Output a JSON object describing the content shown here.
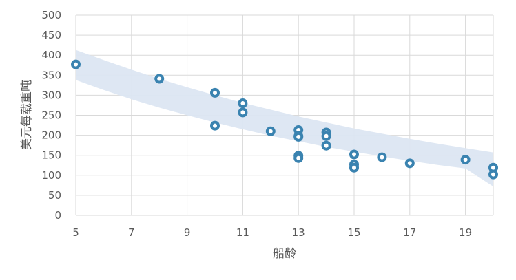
{
  "chart_data": {
    "type": "scatter",
    "title": "",
    "xlabel": "船龄",
    "ylabel": "美元每载重吨",
    "xlim": [
      5,
      20
    ],
    "ylim": [
      0,
      500
    ],
    "xticks": [
      5,
      7,
      9,
      11,
      13,
      15,
      17,
      19
    ],
    "yticks": [
      0,
      50,
      100,
      150,
      200,
      250,
      300,
      350,
      400,
      450,
      500
    ],
    "grid": true,
    "legend": "none",
    "colors": {
      "marker_fill": "#4a9fd0",
      "marker_stroke": "#3a83b0",
      "band": "#dce6f2",
      "grid": "#d9d9d9",
      "text": "#595959"
    },
    "band": {
      "x": [
        5,
        6,
        7,
        8,
        9,
        10,
        11,
        12,
        13,
        14,
        15,
        16,
        17,
        18,
        19,
        20
      ],
      "upper": [
        413,
        388,
        364,
        341,
        320,
        300,
        281,
        264,
        247,
        232,
        217,
        204,
        191,
        179,
        168,
        157
      ],
      "lower": [
        338,
        313,
        290,
        269,
        250,
        232,
        215,
        199,
        185,
        171,
        159,
        147,
        136,
        126,
        117,
        72
      ]
    },
    "points": [
      {
        "x": 5,
        "y": 377
      },
      {
        "x": 8,
        "y": 341
      },
      {
        "x": 10,
        "y": 306
      },
      {
        "x": 10,
        "y": 224
      },
      {
        "x": 11,
        "y": 280
      },
      {
        "x": 11,
        "y": 257
      },
      {
        "x": 12,
        "y": 210
      },
      {
        "x": 13,
        "y": 213
      },
      {
        "x": 13,
        "y": 198
      },
      {
        "x": 13,
        "y": 196
      },
      {
        "x": 13,
        "y": 149
      },
      {
        "x": 13,
        "y": 143
      },
      {
        "x": 14,
        "y": 207
      },
      {
        "x": 14,
        "y": 198
      },
      {
        "x": 14,
        "y": 174
      },
      {
        "x": 15,
        "y": 152
      },
      {
        "x": 15,
        "y": 127
      },
      {
        "x": 15,
        "y": 119
      },
      {
        "x": 16,
        "y": 145
      },
      {
        "x": 17,
        "y": 130
      },
      {
        "x": 19,
        "y": 139
      },
      {
        "x": 20,
        "y": 119
      },
      {
        "x": 20,
        "y": 102
      }
    ]
  }
}
